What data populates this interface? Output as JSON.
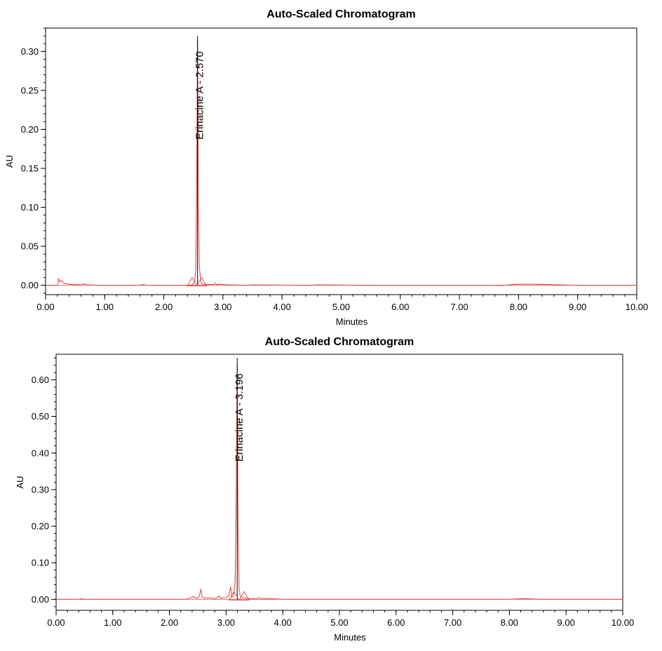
{
  "chart_data": [
    {
      "type": "line",
      "title": "Auto-Scaled Chromatogram",
      "xlabel": "Minutes",
      "ylabel": "AU",
      "xlim": [
        0,
        10
      ],
      "ylim": [
        -0.012,
        0.33
      ],
      "xticks": [
        0,
        1,
        2,
        3,
        4,
        5,
        6,
        7,
        8,
        9,
        10
      ],
      "xtick_labels": [
        "0.00",
        "1.00",
        "2.00",
        "3.00",
        "4.00",
        "5.00",
        "6.00",
        "7.00",
        "8.00",
        "9.00",
        "10.00"
      ],
      "yticks": [
        0,
        0.05,
        0.1,
        0.15,
        0.2,
        0.25,
        0.3
      ],
      "ytick_labels": [
        "0.00",
        "0.05",
        "0.10",
        "0.15",
        "0.20",
        "0.25",
        "0.30"
      ],
      "y_minor_step": 0.01,
      "x_minor_step": 0.2,
      "grid": false,
      "series_color": "#e05050",
      "peak_line": {
        "x": 2.57,
        "ymax": 0.32
      },
      "peak_label": "Erinacine A - 2.570",
      "integration_marks": [
        2.48,
        2.64
      ],
      "series": [
        {
          "x": [
            0,
            0.2,
            0.22,
            0.24,
            0.27,
            0.3,
            0.35,
            0.45,
            0.6,
            0.65,
            0.7,
            0.9,
            1.1,
            1.6,
            1.65,
            1.7,
            2.0,
            2.4,
            2.48,
            2.52,
            2.54,
            2.555,
            2.57,
            2.585,
            2.6,
            2.62,
            2.64,
            2.7,
            2.85,
            2.87,
            2.89,
            2.93,
            2.95,
            2.97,
            3.1,
            3.4,
            3.5,
            4.5,
            4.6,
            5.5,
            6.5,
            7.5,
            7.7,
            7.9,
            8.1,
            8.5,
            9.0,
            9.5,
            10.0
          ],
          "y": [
            0,
            0,
            0.009,
            0.004,
            0.006,
            0.003,
            0.002,
            0.001,
            0.0005,
            0.002,
            0.0005,
            0,
            0,
            0,
            0.001,
            0,
            0,
            0,
            0.0005,
            0.004,
            0.02,
            0.12,
            0.315,
            0.1,
            0.025,
            0.008,
            0.002,
            0.001,
            0.001,
            0.003,
            0.001,
            0.001,
            0.002,
            0.001,
            0.0005,
            0,
            0.0005,
            0,
            0.0005,
            0,
            0,
            0,
            -0.0005,
            0.001,
            0.0015,
            0.001,
            0,
            0,
            0
          ]
        }
      ]
    },
    {
      "type": "line",
      "title": "Auto-Scaled Chromatogram",
      "xlabel": "Minutes",
      "ylabel": "AU",
      "xlim": [
        0,
        10
      ],
      "ylim": [
        -0.03,
        0.67
      ],
      "xticks": [
        0,
        1,
        2,
        3,
        4,
        5,
        6,
        7,
        8,
        9,
        10
      ],
      "xtick_labels": [
        "0.00",
        "1.00",
        "2.00",
        "3.00",
        "4.00",
        "5.00",
        "6.00",
        "7.00",
        "8.00",
        "9.00",
        "10.00"
      ],
      "yticks": [
        0,
        0.1,
        0.2,
        0.3,
        0.4,
        0.5,
        0.6
      ],
      "ytick_labels": [
        "0.00",
        "0.10",
        "0.20",
        "0.30",
        "0.40",
        "0.50",
        "0.60"
      ],
      "y_minor_step": 0.02,
      "x_minor_step": 0.2,
      "grid": false,
      "series_color": "#e05050",
      "peak_line": {
        "x": 3.196,
        "ymax": 0.66
      },
      "peak_label": "Erinacine A - 3.196",
      "integration_marks": [
        3.14,
        3.32
      ],
      "series": [
        {
          "x": [
            0,
            0.4,
            0.45,
            0.5,
            1.5,
            2.3,
            2.4,
            2.42,
            2.45,
            2.5,
            2.53,
            2.555,
            2.58,
            2.62,
            2.7,
            2.8,
            2.85,
            2.87,
            2.9,
            2.95,
            3.0,
            3.05,
            3.08,
            3.1,
            3.13,
            3.16,
            3.18,
            3.196,
            3.21,
            3.23,
            3.25,
            3.3,
            3.4,
            3.55,
            3.58,
            3.62,
            3.8,
            4.0,
            5.0,
            7.0,
            8.0,
            8.2,
            8.4,
            8.6,
            9.0,
            10.0
          ],
          "y": [
            0,
            0,
            0.002,
            0,
            0,
            0,
            0.006,
            0.009,
            0.004,
            0.003,
            0.01,
            0.028,
            0.006,
            0.003,
            0.004,
            0.002,
            0.004,
            0.01,
            0.003,
            0.004,
            0.005,
            0.01,
            0.034,
            0.006,
            0.008,
            0.05,
            0.3,
            0.64,
            0.2,
            0.03,
            0.008,
            0.004,
            0.002,
            0.002,
            0.005,
            0.002,
            0.002,
            0,
            0,
            0,
            0,
            0.002,
            0.001,
            0,
            0,
            0
          ]
        }
      ]
    }
  ]
}
